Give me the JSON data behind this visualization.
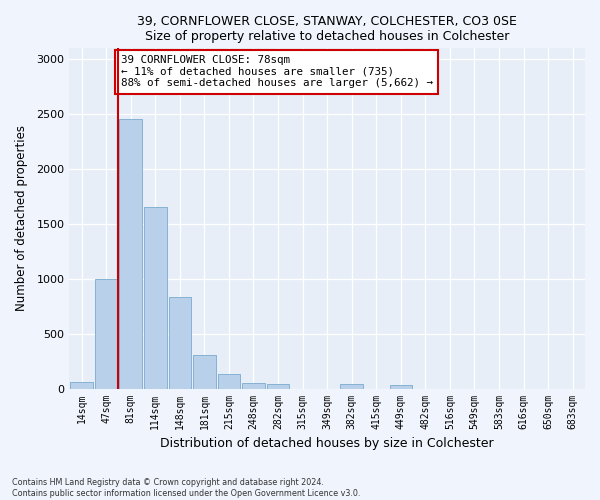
{
  "title": "39, CORNFLOWER CLOSE, STANWAY, COLCHESTER, CO3 0SE",
  "subtitle": "Size of property relative to detached houses in Colchester",
  "xlabel": "Distribution of detached houses by size in Colchester",
  "ylabel": "Number of detached properties",
  "categories": [
    "14sqm",
    "47sqm",
    "81sqm",
    "114sqm",
    "148sqm",
    "181sqm",
    "215sqm",
    "248sqm",
    "282sqm",
    "315sqm",
    "349sqm",
    "382sqm",
    "415sqm",
    "449sqm",
    "482sqm",
    "516sqm",
    "549sqm",
    "583sqm",
    "616sqm",
    "650sqm",
    "683sqm"
  ],
  "values": [
    60,
    1000,
    2460,
    1650,
    830,
    305,
    130,
    55,
    45,
    0,
    0,
    45,
    0,
    30,
    0,
    0,
    0,
    0,
    0,
    0,
    0
  ],
  "bar_color": "#b8d0ea",
  "bar_edge_color": "#7aaacf",
  "marker_line_color": "#cc0000",
  "annotation_text": "39 CORNFLOWER CLOSE: 78sqm\n← 11% of detached houses are smaller (735)\n88% of semi-detached houses are larger (5,662) →",
  "annotation_box_color": "#ffffff",
  "annotation_box_edge": "#cc0000",
  "ylim": [
    0,
    3100
  ],
  "yticks": [
    0,
    500,
    1000,
    1500,
    2000,
    2500,
    3000
  ],
  "fig_bg_color": "#f0f4fc",
  "ax_bg_color": "#e8eef8",
  "footer1": "Contains HM Land Registry data © Crown copyright and database right 2024.",
  "footer2": "Contains public sector information licensed under the Open Government Licence v3.0."
}
